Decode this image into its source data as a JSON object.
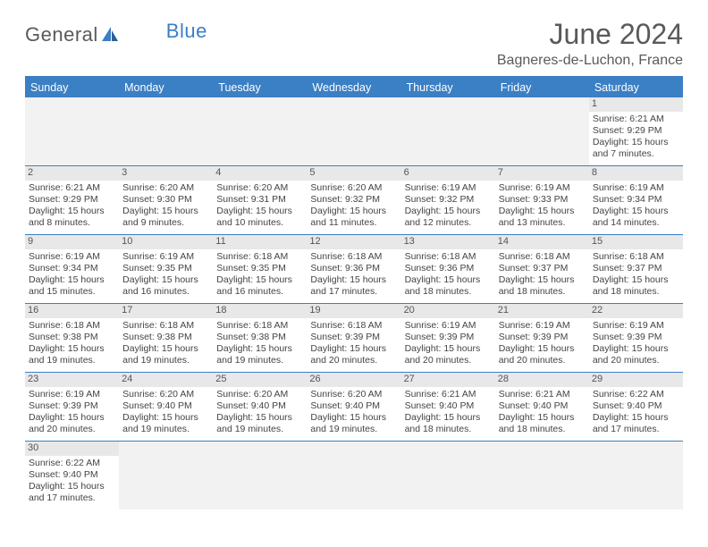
{
  "logo": {
    "text1": "General",
    "text2": "Blue"
  },
  "title": "June 2024",
  "location": "Bagneres-de-Luchon, France",
  "dayNames": [
    "Sunday",
    "Monday",
    "Tuesday",
    "Wednesday",
    "Thursday",
    "Friday",
    "Saturday"
  ],
  "colors": {
    "brand": "#3b7fc4",
    "headerText": "#5a5a5a",
    "cellBg": "#e8e8e8"
  },
  "weeks": [
    [
      null,
      null,
      null,
      null,
      null,
      null,
      {
        "d": "1",
        "sr": "6:21 AM",
        "ss": "9:29 PM",
        "dl": "15 hours and 7 minutes."
      }
    ],
    [
      {
        "d": "2",
        "sr": "6:21 AM",
        "ss": "9:29 PM",
        "dl": "15 hours and 8 minutes."
      },
      {
        "d": "3",
        "sr": "6:20 AM",
        "ss": "9:30 PM",
        "dl": "15 hours and 9 minutes."
      },
      {
        "d": "4",
        "sr": "6:20 AM",
        "ss": "9:31 PM",
        "dl": "15 hours and 10 minutes."
      },
      {
        "d": "5",
        "sr": "6:20 AM",
        "ss": "9:32 PM",
        "dl": "15 hours and 11 minutes."
      },
      {
        "d": "6",
        "sr": "6:19 AM",
        "ss": "9:32 PM",
        "dl": "15 hours and 12 minutes."
      },
      {
        "d": "7",
        "sr": "6:19 AM",
        "ss": "9:33 PM",
        "dl": "15 hours and 13 minutes."
      },
      {
        "d": "8",
        "sr": "6:19 AM",
        "ss": "9:34 PM",
        "dl": "15 hours and 14 minutes."
      }
    ],
    [
      {
        "d": "9",
        "sr": "6:19 AM",
        "ss": "9:34 PM",
        "dl": "15 hours and 15 minutes."
      },
      {
        "d": "10",
        "sr": "6:19 AM",
        "ss": "9:35 PM",
        "dl": "15 hours and 16 minutes."
      },
      {
        "d": "11",
        "sr": "6:18 AM",
        "ss": "9:35 PM",
        "dl": "15 hours and 16 minutes."
      },
      {
        "d": "12",
        "sr": "6:18 AM",
        "ss": "9:36 PM",
        "dl": "15 hours and 17 minutes."
      },
      {
        "d": "13",
        "sr": "6:18 AM",
        "ss": "9:36 PM",
        "dl": "15 hours and 18 minutes."
      },
      {
        "d": "14",
        "sr": "6:18 AM",
        "ss": "9:37 PM",
        "dl": "15 hours and 18 minutes."
      },
      {
        "d": "15",
        "sr": "6:18 AM",
        "ss": "9:37 PM",
        "dl": "15 hours and 18 minutes."
      }
    ],
    [
      {
        "d": "16",
        "sr": "6:18 AM",
        "ss": "9:38 PM",
        "dl": "15 hours and 19 minutes."
      },
      {
        "d": "17",
        "sr": "6:18 AM",
        "ss": "9:38 PM",
        "dl": "15 hours and 19 minutes."
      },
      {
        "d": "18",
        "sr": "6:18 AM",
        "ss": "9:38 PM",
        "dl": "15 hours and 19 minutes."
      },
      {
        "d": "19",
        "sr": "6:18 AM",
        "ss": "9:39 PM",
        "dl": "15 hours and 20 minutes."
      },
      {
        "d": "20",
        "sr": "6:19 AM",
        "ss": "9:39 PM",
        "dl": "15 hours and 20 minutes."
      },
      {
        "d": "21",
        "sr": "6:19 AM",
        "ss": "9:39 PM",
        "dl": "15 hours and 20 minutes."
      },
      {
        "d": "22",
        "sr": "6:19 AM",
        "ss": "9:39 PM",
        "dl": "15 hours and 20 minutes."
      }
    ],
    [
      {
        "d": "23",
        "sr": "6:19 AM",
        "ss": "9:39 PM",
        "dl": "15 hours and 20 minutes."
      },
      {
        "d": "24",
        "sr": "6:20 AM",
        "ss": "9:40 PM",
        "dl": "15 hours and 19 minutes."
      },
      {
        "d": "25",
        "sr": "6:20 AM",
        "ss": "9:40 PM",
        "dl": "15 hours and 19 minutes."
      },
      {
        "d": "26",
        "sr": "6:20 AM",
        "ss": "9:40 PM",
        "dl": "15 hours and 19 minutes."
      },
      {
        "d": "27",
        "sr": "6:21 AM",
        "ss": "9:40 PM",
        "dl": "15 hours and 18 minutes."
      },
      {
        "d": "28",
        "sr": "6:21 AM",
        "ss": "9:40 PM",
        "dl": "15 hours and 18 minutes."
      },
      {
        "d": "29",
        "sr": "6:22 AM",
        "ss": "9:40 PM",
        "dl": "15 hours and 17 minutes."
      }
    ],
    [
      {
        "d": "30",
        "sr": "6:22 AM",
        "ss": "9:40 PM",
        "dl": "15 hours and 17 minutes."
      },
      null,
      null,
      null,
      null,
      null,
      null
    ]
  ],
  "labels": {
    "sunrise": "Sunrise: ",
    "sunset": "Sunset: ",
    "daylight": "Daylight: "
  }
}
